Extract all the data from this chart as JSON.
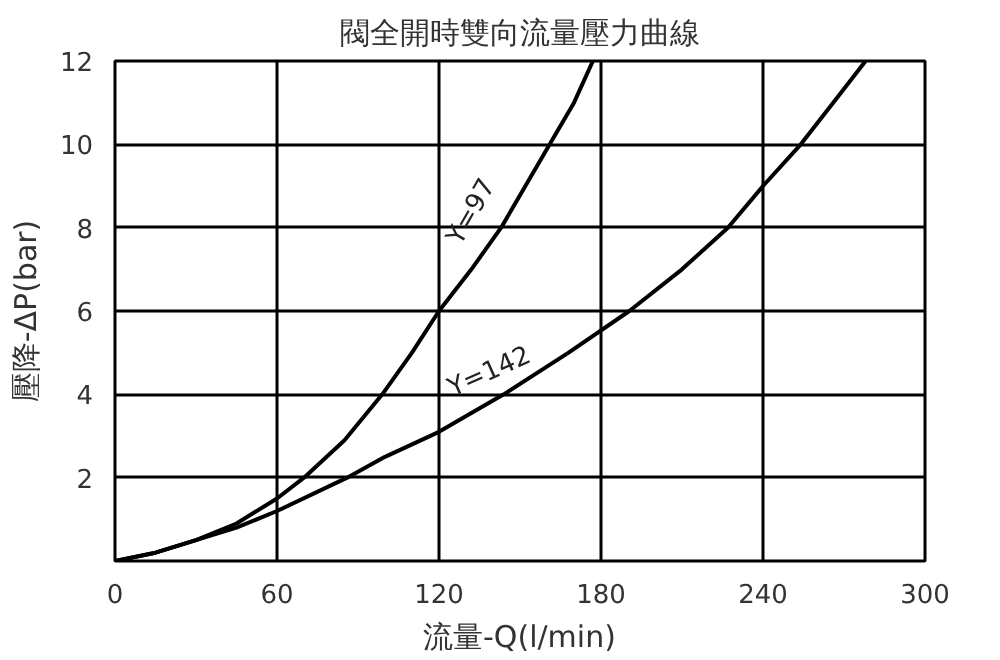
{
  "chart_data": {
    "type": "line",
    "title": "閥全開時雙向流量壓力曲線",
    "xlabel": "流量-Q(l/min)",
    "ylabel": "壓降-ΔP(bar)",
    "xlim": [
      0,
      300
    ],
    "ylim": [
      0,
      12
    ],
    "xticks": [
      0,
      60,
      120,
      180,
      240,
      300
    ],
    "yticks": [
      {
        "value": 0,
        "label": null
      },
      2,
      4,
      6,
      8,
      10,
      12
    ],
    "grid": true,
    "marker": "none",
    "line_style": "solid",
    "series": [
      {
        "color": "#000000",
        "x": [
          0,
          15,
          30,
          45,
          60,
          70,
          85,
          99,
          110,
          120,
          132,
          143,
          152,
          161,
          170,
          177
        ],
        "values": [
          0,
          0.2,
          0.5,
          0.9,
          1.5,
          2,
          2.9,
          4,
          5,
          6,
          7,
          8,
          9,
          10,
          11,
          12
        ]
      },
      {
        "color": "#000000",
        "x": [
          0,
          15,
          30,
          45,
          60,
          86,
          100,
          120,
          144,
          168,
          190.5,
          210,
          227,
          240,
          254,
          266,
          278
        ],
        "values": [
          0,
          0.2,
          0.5,
          0.8,
          1.2,
          2,
          2.5,
          3.1,
          4,
          5,
          6,
          7,
          8,
          9,
          10,
          11,
          12
        ]
      }
    ],
    "annotations": [
      {
        "text": "Y=97",
        "x": 143,
        "y": 8
      },
      {
        "text": "Y=142",
        "x": 144,
        "y": 4
      }
    ]
  }
}
